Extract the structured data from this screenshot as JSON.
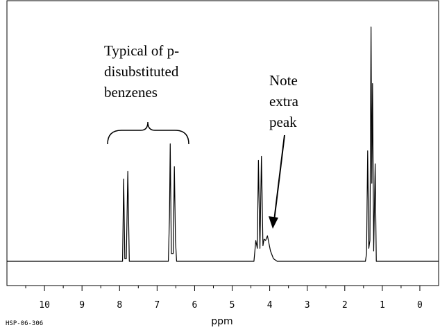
{
  "chart_data": {
    "type": "line",
    "x_label": "ppm",
    "footer": "HSP-06-306",
    "annotations": [
      {
        "lines": [
          "Typical of p-",
          "disubstituted",
          "benzenes"
        ]
      },
      {
        "lines": [
          "Note",
          "extra",
          "peak"
        ]
      }
    ],
    "xlim": [
      11.0,
      -0.5
    ],
    "ylim": [
      -9.3,
      100
    ],
    "xticks": [
      10,
      9,
      8,
      7,
      6,
      5,
      4,
      3,
      2,
      1,
      0
    ],
    "xminor_ticks": [
      10.5,
      9.5,
      8.5,
      7.5,
      6.5,
      5.5,
      4.5,
      3.5,
      2.5,
      1.5,
      0.5
    ],
    "color": "#000000",
    "x": [
      11.0,
      8.0,
      7.92,
      7.89,
      7.86,
      7.82,
      7.78,
      7.74,
      6.7,
      6.67,
      6.65,
      6.62,
      6.57,
      6.54,
      6.51,
      6.48,
      4.42,
      4.37,
      4.33,
      4.3,
      4.26,
      4.22,
      4.18,
      4.15,
      4.11,
      4.06,
      3.98,
      3.9,
      3.8,
      1.45,
      1.42,
      1.39,
      1.36,
      1.33,
      1.3,
      1.28,
      1.26,
      1.23,
      1.19,
      1.16,
      -0.5
    ],
    "values": [
      0,
      0,
      0,
      31.6,
      1,
      1,
      34.5,
      0,
      0,
      17,
      45.1,
      3,
      3,
      36.3,
      8,
      0,
      0,
      8,
      5,
      38.7,
      5,
      40.3,
      6,
      8.5,
      8,
      9.8,
      4,
      1,
      0,
      0,
      3,
      42.4,
      5,
      8,
      89.9,
      30,
      68.2,
      4,
      37.4,
      0,
      0
    ]
  }
}
